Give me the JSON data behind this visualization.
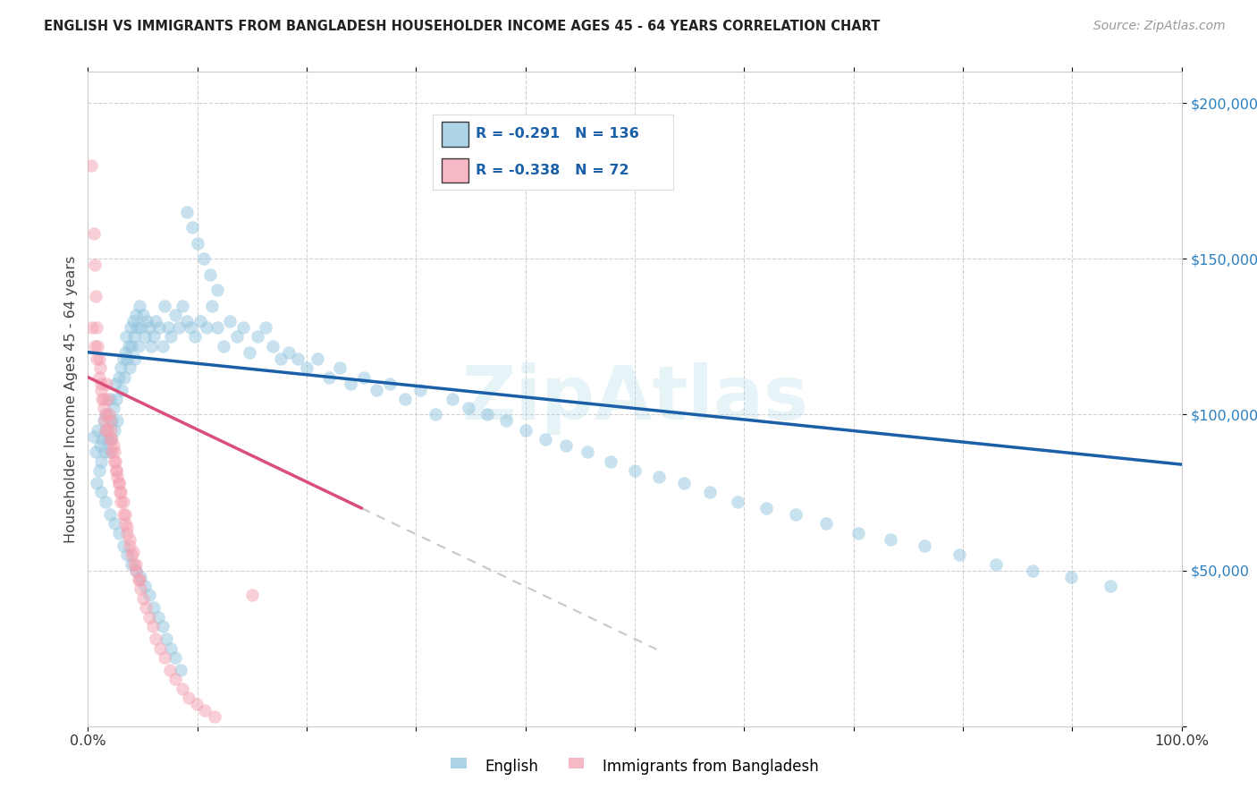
{
  "title": "ENGLISH VS IMMIGRANTS FROM BANGLADESH HOUSEHOLDER INCOME AGES 45 - 64 YEARS CORRELATION CHART",
  "source": "Source: ZipAtlas.com",
  "ylabel": "Householder Income Ages 45 - 64 years",
  "legend_labels": [
    "English",
    "Immigrants from Bangladesh"
  ],
  "r_english": -0.291,
  "n_english": 136,
  "r_bangladesh": -0.338,
  "n_bangladesh": 72,
  "color_english": "#92c5de",
  "color_bangladesh": "#f4a0b0",
  "color_trendline_english": "#1a5fa8",
  "color_trendline_bangladesh": "#d94f7a",
  "color_trendline_extension": "#c8c8c8",
  "ytick_labels": [
    "$200,000",
    "$150,000",
    "$100,000",
    "$50,000"
  ],
  "ytick_values": [
    200000,
    150000,
    100000,
    50000
  ],
  "english_x": [
    0.005,
    0.007,
    0.009,
    0.01,
    0.011,
    0.012,
    0.013,
    0.014,
    0.015,
    0.016,
    0.017,
    0.018,
    0.019,
    0.02,
    0.021,
    0.022,
    0.023,
    0.024,
    0.025,
    0.026,
    0.027,
    0.028,
    0.03,
    0.031,
    0.032,
    0.033,
    0.034,
    0.035,
    0.036,
    0.037,
    0.038,
    0.039,
    0.04,
    0.041,
    0.042,
    0.043,
    0.044,
    0.045,
    0.046,
    0.047,
    0.048,
    0.05,
    0.052,
    0.054,
    0.056,
    0.058,
    0.06,
    0.062,
    0.065,
    0.068,
    0.07,
    0.073,
    0.076,
    0.08,
    0.083,
    0.086,
    0.09,
    0.094,
    0.098,
    0.103,
    0.108,
    0.113,
    0.118,
    0.124,
    0.13,
    0.136,
    0.142,
    0.148,
    0.155,
    0.162,
    0.169,
    0.176,
    0.184,
    0.192,
    0.2,
    0.21,
    0.22,
    0.23,
    0.24,
    0.252,
    0.264,
    0.276,
    0.29,
    0.304,
    0.318,
    0.333,
    0.348,
    0.365,
    0.382,
    0.4,
    0.418,
    0.437,
    0.457,
    0.478,
    0.5,
    0.522,
    0.545,
    0.569,
    0.594,
    0.62,
    0.647,
    0.675,
    0.704,
    0.734,
    0.765,
    0.797,
    0.83,
    0.864,
    0.899,
    0.935,
    0.008,
    0.012,
    0.016,
    0.02,
    0.024,
    0.028,
    0.032,
    0.036,
    0.04,
    0.044,
    0.048,
    0.052,
    0.056,
    0.06,
    0.064,
    0.068,
    0.072,
    0.076,
    0.08,
    0.085,
    0.09,
    0.095,
    0.1,
    0.106,
    0.112,
    0.118
  ],
  "english_y": [
    93000,
    88000,
    95000,
    82000,
    90000,
    85000,
    92000,
    98000,
    88000,
    95000,
    100000,
    92000,
    88000,
    105000,
    92000,
    98000,
    102000,
    95000,
    110000,
    105000,
    98000,
    112000,
    115000,
    108000,
    118000,
    112000,
    120000,
    125000,
    118000,
    122000,
    115000,
    128000,
    122000,
    130000,
    125000,
    118000,
    132000,
    128000,
    122000,
    135000,
    128000,
    132000,
    125000,
    130000,
    128000,
    122000,
    125000,
    130000,
    128000,
    122000,
    135000,
    128000,
    125000,
    132000,
    128000,
    135000,
    130000,
    128000,
    125000,
    130000,
    128000,
    135000,
    128000,
    122000,
    130000,
    125000,
    128000,
    120000,
    125000,
    128000,
    122000,
    118000,
    120000,
    118000,
    115000,
    118000,
    112000,
    115000,
    110000,
    112000,
    108000,
    110000,
    105000,
    108000,
    100000,
    105000,
    102000,
    100000,
    98000,
    95000,
    92000,
    90000,
    88000,
    85000,
    82000,
    80000,
    78000,
    75000,
    72000,
    70000,
    68000,
    65000,
    62000,
    60000,
    58000,
    55000,
    52000,
    50000,
    48000,
    45000,
    78000,
    75000,
    72000,
    68000,
    65000,
    62000,
    58000,
    55000,
    52000,
    50000,
    48000,
    45000,
    42000,
    38000,
    35000,
    32000,
    28000,
    25000,
    22000,
    18000,
    165000,
    160000,
    155000,
    150000,
    145000,
    140000
  ],
  "bangladesh_x": [
    0.003,
    0.005,
    0.006,
    0.007,
    0.008,
    0.009,
    0.01,
    0.011,
    0.012,
    0.013,
    0.014,
    0.015,
    0.016,
    0.017,
    0.018,
    0.019,
    0.02,
    0.021,
    0.022,
    0.023,
    0.024,
    0.025,
    0.026,
    0.027,
    0.028,
    0.029,
    0.03,
    0.032,
    0.034,
    0.036,
    0.038,
    0.04,
    0.042,
    0.044,
    0.046,
    0.048,
    0.05,
    0.053,
    0.056,
    0.059,
    0.062,
    0.066,
    0.07,
    0.075,
    0.08,
    0.086,
    0.092,
    0.099,
    0.107,
    0.116,
    0.004,
    0.006,
    0.008,
    0.01,
    0.012,
    0.014,
    0.016,
    0.018,
    0.02,
    0.022,
    0.024,
    0.026,
    0.028,
    0.03,
    0.032,
    0.034,
    0.036,
    0.038,
    0.041,
    0.044,
    0.047,
    0.15
  ],
  "bangladesh_y": [
    180000,
    158000,
    148000,
    138000,
    128000,
    122000,
    118000,
    115000,
    110000,
    105000,
    102000,
    98000,
    95000,
    110000,
    105000,
    100000,
    98000,
    95000,
    92000,
    90000,
    88000,
    85000,
    82000,
    80000,
    78000,
    75000,
    72000,
    68000,
    65000,
    62000,
    58000,
    55000,
    52000,
    50000,
    47000,
    44000,
    41000,
    38000,
    35000,
    32000,
    28000,
    25000,
    22000,
    18000,
    15000,
    12000,
    9000,
    7000,
    5000,
    3000,
    128000,
    122000,
    118000,
    112000,
    108000,
    105000,
    100000,
    95000,
    92000,
    88000,
    85000,
    82000,
    78000,
    75000,
    72000,
    68000,
    64000,
    60000,
    56000,
    52000,
    47000,
    42000
  ]
}
